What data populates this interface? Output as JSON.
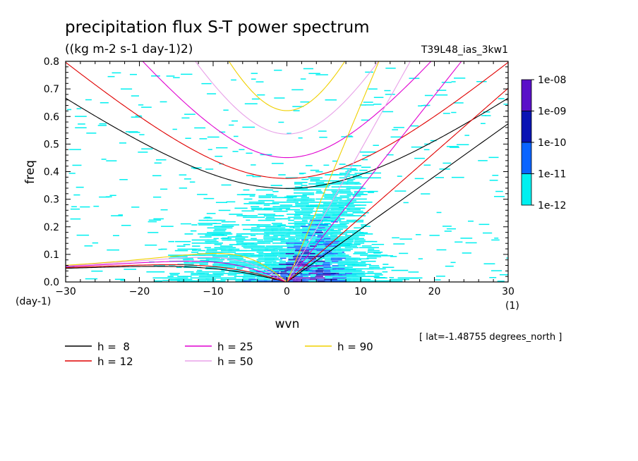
{
  "chart_data": {
    "type": "heatmap",
    "title": "precipitation flux S-T power spectrum",
    "units": "((kg m-2 s-1 day-1)2)",
    "run_label": "T39L48_ias_3kw1",
    "xlabel": "wvn",
    "ylabel": "freq",
    "x_unit": "(1)",
    "y_unit": "(day-1)",
    "xlim": [
      -30,
      30
    ],
    "ylim": [
      0,
      0.8
    ],
    "x_ticks": [
      "-30",
      "-20",
      "-10",
      "0",
      "10",
      "20",
      "30"
    ],
    "y_ticks": [
      "0.0",
      "0.1",
      "0.2",
      "0.3",
      "0.4",
      "0.5",
      "0.6",
      "0.7",
      "0.8"
    ],
    "lat_note": "[ lat=-1.48755 degrees_north ]",
    "colorbar": {
      "labels": [
        "1e-08",
        "1e-09",
        "1e-10",
        "1e-11",
        "1e-12"
      ],
      "colors": [
        "#5a10c8",
        "#0a14b4",
        "#0a64ff",
        "#00f0f0"
      ]
    },
    "series": [
      {
        "name": "h =  8",
        "h": 8,
        "color": "#000000"
      },
      {
        "name": "h = 12",
        "h": 12,
        "color": "#e00000"
      },
      {
        "name": "h = 25",
        "h": 25,
        "color": "#e000d0"
      },
      {
        "name": "h = 50",
        "h": 50,
        "color": "#e8a0e8"
      },
      {
        "name": "h = 90",
        "h": 90,
        "color": "#f0d000"
      }
    ]
  }
}
